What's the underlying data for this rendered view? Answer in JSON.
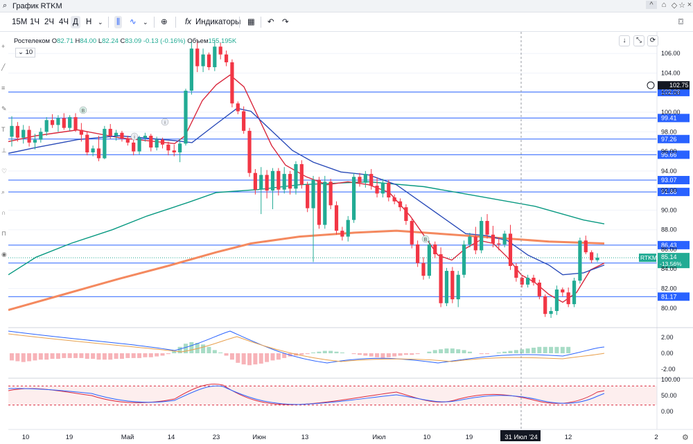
{
  "window": {
    "title": "График RTKM",
    "controls": [
      "^",
      "⌂",
      "◇",
      "☆",
      "×"
    ]
  },
  "toolbar": {
    "timeframes": [
      "15M",
      "1Ч",
      "2Ч",
      "4Ч",
      "Д",
      "Н"
    ],
    "active_timeframe": "Д",
    "indicators_label": "Индикаторы"
  },
  "legend": {
    "name": "Ростелеком",
    "o_label": "О",
    "o": "82.71",
    "h_label": "H",
    "h": "84.00",
    "l_label": "L",
    "l": "82.24",
    "c_label": "C",
    "c": "83.09",
    "change": "-0.13 (-0.16%)",
    "vol_label": "Объем",
    "volume": "155.195K",
    "indicator_value": "10"
  },
  "colors": {
    "up": "#22ab94",
    "down": "#f23645",
    "level": "#2962ff",
    "ma_green": "#089981",
    "ma_orange": "#f4895f",
    "ma_red": "#d9283d",
    "ma_blue": "#2a4bb8",
    "text": "#131722",
    "grid": "#f0f3fa"
  },
  "chart_data": {
    "type": "candlestick",
    "price_axis": {
      "ticks": [
        "106.00",
        "104.00",
        "102.00",
        "100.00",
        "98.00",
        "96.00",
        "94.00",
        "92.00",
        "90.00",
        "88.00",
        "86.00",
        "84.00",
        "82.00",
        "80.00"
      ],
      "ylim": [
        78.5,
        107.5
      ]
    },
    "time_axis": {
      "ticks": [
        "10",
        "19",
        "Май",
        "14",
        "23",
        "Июн",
        "13",
        "Июл",
        "10",
        "19",
        "31 Июл '24",
        "12",
        "2"
      ]
    },
    "crosshair_label": "31 Июл '24",
    "price_marker": "102.75",
    "last_price": {
      "symbol": "RTKM",
      "value": "85.14",
      "change": "-13.56%"
    },
    "levels": [
      {
        "value": 102.06,
        "label": "102.06"
      },
      {
        "value": 99.41,
        "label": "99.41"
      },
      {
        "value": 97.26,
        "label": "97.26"
      },
      {
        "value": 95.66,
        "label": "95.66"
      },
      {
        "value": 93.07,
        "label": "93.07"
      },
      {
        "value": 91.86,
        "label": "91.86"
      },
      {
        "value": 86.43,
        "label": "86.43"
      },
      {
        "value": 84.6,
        "label": "84.60"
      },
      {
        "value": 81.17,
        "label": "81.17"
      }
    ],
    "candles": [
      {
        "o": 97.5,
        "h": 99.6,
        "l": 96.5,
        "c": 98.6
      },
      {
        "o": 98.6,
        "h": 99.0,
        "l": 97.0,
        "c": 97.4
      },
      {
        "o": 97.4,
        "h": 98.7,
        "l": 96.8,
        "c": 98.2
      },
      {
        "o": 98.2,
        "h": 98.6,
        "l": 96.5,
        "c": 96.9
      },
      {
        "o": 96.9,
        "h": 97.8,
        "l": 96.2,
        "c": 97.2
      },
      {
        "o": 97.2,
        "h": 98.4,
        "l": 96.9,
        "c": 98.0
      },
      {
        "o": 98.0,
        "h": 99.5,
        "l": 97.6,
        "c": 99.2
      },
      {
        "o": 99.2,
        "h": 99.8,
        "l": 98.4,
        "c": 98.7
      },
      {
        "o": 98.7,
        "h": 99.7,
        "l": 98.0,
        "c": 99.4
      },
      {
        "o": 99.4,
        "h": 99.9,
        "l": 98.2,
        "c": 98.4
      },
      {
        "o": 98.4,
        "h": 99.7,
        "l": 98.1,
        "c": 99.5
      },
      {
        "o": 99.5,
        "h": 99.9,
        "l": 98.0,
        "c": 98.2
      },
      {
        "o": 98.2,
        "h": 98.9,
        "l": 97.0,
        "c": 97.7
      },
      {
        "o": 97.7,
        "h": 98.0,
        "l": 95.6,
        "c": 95.9
      },
      {
        "o": 95.9,
        "h": 96.6,
        "l": 95.5,
        "c": 96.3
      },
      {
        "o": 96.3,
        "h": 97.6,
        "l": 95.0,
        "c": 95.3
      },
      {
        "o": 95.3,
        "h": 98.6,
        "l": 95.2,
        "c": 98.3
      },
      {
        "o": 98.3,
        "h": 98.8,
        "l": 97.3,
        "c": 97.6
      },
      {
        "o": 97.6,
        "h": 98.2,
        "l": 97.1,
        "c": 97.9
      },
      {
        "o": 97.9,
        "h": 98.1,
        "l": 97.0,
        "c": 97.3
      },
      {
        "o": 97.3,
        "h": 97.6,
        "l": 96.6,
        "c": 96.9
      },
      {
        "o": 96.9,
        "h": 97.6,
        "l": 95.6,
        "c": 96.0
      },
      {
        "o": 96.0,
        "h": 97.6,
        "l": 95.7,
        "c": 97.4
      },
      {
        "o": 97.4,
        "h": 97.9,
        "l": 97.0,
        "c": 97.6
      },
      {
        "o": 97.6,
        "h": 97.8,
        "l": 96.0,
        "c": 96.4
      },
      {
        "o": 96.4,
        "h": 97.5,
        "l": 96.1,
        "c": 97.2
      },
      {
        "o": 97.2,
        "h": 97.4,
        "l": 96.3,
        "c": 96.7
      },
      {
        "o": 96.7,
        "h": 97.0,
        "l": 95.6,
        "c": 96.1
      },
      {
        "o": 96.1,
        "h": 96.7,
        "l": 95.5,
        "c": 95.9
      },
      {
        "o": 95.9,
        "h": 97.3,
        "l": 94.9,
        "c": 96.8
      },
      {
        "o": 96.8,
        "h": 102.4,
        "l": 96.6,
        "c": 102.2
      },
      {
        "o": 102.2,
        "h": 107.2,
        "l": 101.8,
        "c": 106.5
      },
      {
        "o": 106.5,
        "h": 107.3,
        "l": 104.1,
        "c": 104.7
      },
      {
        "o": 104.7,
        "h": 106.5,
        "l": 104.1,
        "c": 105.9
      },
      {
        "o": 105.9,
        "h": 106.1,
        "l": 104.3,
        "c": 104.6
      },
      {
        "o": 104.6,
        "h": 107.4,
        "l": 104.2,
        "c": 106.7
      },
      {
        "o": 106.7,
        "h": 107.1,
        "l": 105.4,
        "c": 105.9
      },
      {
        "o": 105.9,
        "h": 106.3,
        "l": 104.7,
        "c": 105.1
      },
      {
        "o": 105.1,
        "h": 105.4,
        "l": 100.5,
        "c": 100.9
      },
      {
        "o": 100.9,
        "h": 101.1,
        "l": 99.8,
        "c": 100.1
      },
      {
        "o": 100.1,
        "h": 100.6,
        "l": 97.8,
        "c": 98.1
      },
      {
        "o": 98.1,
        "h": 98.4,
        "l": 93.4,
        "c": 93.8
      },
      {
        "o": 93.8,
        "h": 94.2,
        "l": 91.6,
        "c": 92.1
      },
      {
        "o": 92.1,
        "h": 94.4,
        "l": 89.6,
        "c": 93.6
      },
      {
        "o": 93.6,
        "h": 94.1,
        "l": 91.2,
        "c": 92.0
      },
      {
        "o": 92.0,
        "h": 94.3,
        "l": 90.1,
        "c": 94.0
      },
      {
        "o": 94.0,
        "h": 94.3,
        "l": 91.5,
        "c": 92.1
      },
      {
        "o": 92.1,
        "h": 94.4,
        "l": 91.7,
        "c": 93.7
      },
      {
        "o": 93.7,
        "h": 94.0,
        "l": 91.6,
        "c": 92.2
      },
      {
        "o": 92.2,
        "h": 95.0,
        "l": 91.6,
        "c": 94.7
      },
      {
        "o": 94.7,
        "h": 95.1,
        "l": 92.2,
        "c": 92.6
      },
      {
        "o": 92.6,
        "h": 92.9,
        "l": 89.8,
        "c": 90.2
      },
      {
        "o": 90.2,
        "h": 93.5,
        "l": 84.7,
        "c": 93.1
      },
      {
        "o": 93.1,
        "h": 93.4,
        "l": 88.1,
        "c": 88.5
      },
      {
        "o": 88.5,
        "h": 93.5,
        "l": 88.1,
        "c": 92.9
      },
      {
        "o": 92.9,
        "h": 93.2,
        "l": 90.1,
        "c": 90.5
      },
      {
        "o": 90.5,
        "h": 90.9,
        "l": 87.5,
        "c": 87.9
      },
      {
        "o": 87.9,
        "h": 88.3,
        "l": 86.9,
        "c": 87.3
      },
      {
        "o": 87.3,
        "h": 89.4,
        "l": 86.8,
        "c": 89.0
      },
      {
        "o": 89.0,
        "h": 93.8,
        "l": 88.7,
        "c": 93.4
      },
      {
        "o": 93.4,
        "h": 93.8,
        "l": 92.4,
        "c": 92.8
      },
      {
        "o": 92.8,
        "h": 94.0,
        "l": 92.3,
        "c": 93.7
      },
      {
        "o": 93.7,
        "h": 94.2,
        "l": 92.1,
        "c": 92.5
      },
      {
        "o": 92.5,
        "h": 93.3,
        "l": 91.3,
        "c": 91.7
      },
      {
        "o": 91.7,
        "h": 93.2,
        "l": 91.3,
        "c": 92.8
      },
      {
        "o": 92.8,
        "h": 93.1,
        "l": 90.9,
        "c": 91.3
      },
      {
        "o": 91.3,
        "h": 91.6,
        "l": 90.6,
        "c": 90.9
      },
      {
        "o": 90.9,
        "h": 91.2,
        "l": 89.9,
        "c": 90.3
      },
      {
        "o": 90.3,
        "h": 90.6,
        "l": 88.5,
        "c": 88.9
      },
      {
        "o": 88.9,
        "h": 89.2,
        "l": 86.1,
        "c": 86.5
      },
      {
        "o": 86.5,
        "h": 86.9,
        "l": 84.2,
        "c": 84.6
      },
      {
        "o": 84.6,
        "h": 85.2,
        "l": 82.9,
        "c": 83.3
      },
      {
        "o": 83.3,
        "h": 86.9,
        "l": 83.0,
        "c": 86.5
      },
      {
        "o": 86.5,
        "h": 86.8,
        "l": 85.1,
        "c": 85.5
      },
      {
        "o": 85.5,
        "h": 86.2,
        "l": 80.1,
        "c": 80.5
      },
      {
        "o": 80.5,
        "h": 84.1,
        "l": 80.2,
        "c": 83.8
      },
      {
        "o": 83.8,
        "h": 84.2,
        "l": 80.5,
        "c": 80.9
      },
      {
        "o": 80.9,
        "h": 83.8,
        "l": 80.1,
        "c": 83.4
      },
      {
        "o": 83.4,
        "h": 86.9,
        "l": 83.1,
        "c": 86.5
      },
      {
        "o": 86.5,
        "h": 87.7,
        "l": 86.2,
        "c": 87.3
      },
      {
        "o": 87.3,
        "h": 88.3,
        "l": 85.5,
        "c": 85.9
      },
      {
        "o": 85.9,
        "h": 89.3,
        "l": 85.6,
        "c": 88.9
      },
      {
        "o": 88.9,
        "h": 89.6,
        "l": 87.1,
        "c": 87.5
      },
      {
        "o": 87.5,
        "h": 88.4,
        "l": 86.2,
        "c": 86.6
      },
      {
        "o": 86.6,
        "h": 87.2,
        "l": 85.9,
        "c": 86.5
      },
      {
        "o": 86.5,
        "h": 87.9,
        "l": 86.2,
        "c": 87.6
      },
      {
        "o": 87.6,
        "h": 88.5,
        "l": 83.9,
        "c": 84.3
      },
      {
        "o": 84.3,
        "h": 84.6,
        "l": 82.7,
        "c": 83.1
      },
      {
        "o": 83.1,
        "h": 83.4,
        "l": 82.1,
        "c": 82.4
      },
      {
        "o": 82.4,
        "h": 83.4,
        "l": 82.1,
        "c": 83.1
      },
      {
        "o": 83.1,
        "h": 83.4,
        "l": 82.3,
        "c": 82.6
      },
      {
        "o": 82.6,
        "h": 82.9,
        "l": 80.9,
        "c": 81.2
      },
      {
        "o": 81.2,
        "h": 81.4,
        "l": 79.1,
        "c": 79.4
      },
      {
        "o": 79.4,
        "h": 80.1,
        "l": 79.0,
        "c": 79.7
      },
      {
        "o": 79.7,
        "h": 82.3,
        "l": 79.3,
        "c": 81.9
      },
      {
        "o": 81.9,
        "h": 82.1,
        "l": 81.2,
        "c": 81.6
      },
      {
        "o": 81.6,
        "h": 82.1,
        "l": 80.1,
        "c": 80.4
      },
      {
        "o": 80.4,
        "h": 83.1,
        "l": 80.1,
        "c": 82.8
      },
      {
        "o": 82.8,
        "h": 87.2,
        "l": 82.5,
        "c": 86.9
      },
      {
        "o": 86.9,
        "h": 87.4,
        "l": 85.5,
        "c": 85.7
      },
      {
        "o": 85.7,
        "h": 85.9,
        "l": 84.6,
        "c": 84.9
      },
      {
        "o": 84.9,
        "h": 85.6,
        "l": 84.7,
        "c": 85.14
      }
    ],
    "ma_series": [
      {
        "color": "#089981",
        "values": [
          [
            0,
            83.4
          ],
          [
            40,
            85.2
          ],
          [
            90,
            86.6
          ],
          [
            150,
            88.0
          ],
          [
            200,
            89.4
          ],
          [
            260,
            90.8
          ],
          [
            300,
            91.8
          ],
          [
            360,
            92.1
          ],
          [
            420,
            92.6
          ],
          [
            520,
            92.9
          ],
          [
            600,
            92.4
          ],
          [
            680,
            91.4
          ],
          [
            760,
            90.4
          ],
          [
            830,
            89.0
          ],
          [
            860,
            88.6
          ]
        ]
      },
      {
        "color": "#f4895f",
        "values": [
          [
            0,
            79.8
          ],
          [
            80,
            81.4
          ],
          [
            160,
            83.0
          ],
          [
            230,
            84.3
          ],
          [
            300,
            85.7
          ],
          [
            350,
            86.6
          ],
          [
            420,
            87.3
          ],
          [
            500,
            87.7
          ],
          [
            560,
            87.9
          ],
          [
            620,
            87.6
          ],
          [
            700,
            87.2
          ],
          [
            780,
            86.8
          ],
          [
            860,
            86.6
          ]
        ]
      },
      {
        "color": "#d9283d",
        "values": [
          [
            0,
            97.0
          ],
          [
            40,
            97.6
          ],
          [
            100,
            98.2
          ],
          [
            160,
            97.4
          ],
          [
            240,
            96.8
          ],
          [
            255,
            97.6
          ],
          [
            280,
            101.2
          ],
          [
            300,
            102.8
          ],
          [
            320,
            103.8
          ],
          [
            340,
            102.6
          ],
          [
            360,
            99.6
          ],
          [
            380,
            96.6
          ],
          [
            400,
            94.6
          ],
          [
            430,
            93.4
          ],
          [
            460,
            92.6
          ],
          [
            490,
            92.9
          ],
          [
            520,
            92.6
          ],
          [
            550,
            91.8
          ],
          [
            580,
            89.4
          ],
          [
            600,
            87.4
          ],
          [
            620,
            85.4
          ],
          [
            640,
            84.9
          ],
          [
            660,
            86.1
          ],
          [
            680,
            86.9
          ],
          [
            700,
            86.6
          ],
          [
            720,
            85.2
          ],
          [
            740,
            83.4
          ],
          [
            760,
            82.6
          ],
          [
            780,
            81.4
          ],
          [
            800,
            80.6
          ],
          [
            820,
            81.6
          ],
          [
            840,
            83.9
          ],
          [
            860,
            84.6
          ]
        ]
      },
      {
        "color": "#2a4bb8",
        "values": [
          [
            0,
            95.8
          ],
          [
            40,
            96.4
          ],
          [
            100,
            97.2
          ],
          [
            160,
            97.6
          ],
          [
            240,
            97.1
          ],
          [
            265,
            96.9
          ],
          [
            300,
            98.8
          ],
          [
            330,
            100.4
          ],
          [
            350,
            100.1
          ],
          [
            380,
            98.1
          ],
          [
            410,
            96.1
          ],
          [
            440,
            94.9
          ],
          [
            480,
            93.9
          ],
          [
            520,
            93.6
          ],
          [
            560,
            92.6
          ],
          [
            600,
            90.6
          ],
          [
            640,
            88.6
          ],
          [
            660,
            87.6
          ],
          [
            690,
            87.4
          ],
          [
            720,
            86.9
          ],
          [
            750,
            85.4
          ],
          [
            780,
            84.4
          ],
          [
            800,
            83.4
          ],
          [
            830,
            83.6
          ],
          [
            860,
            84.4
          ]
        ]
      }
    ],
    "macd": {
      "axis_ticks": [
        "2.00",
        "0.00",
        "-2.00"
      ],
      "ylim": [
        -3,
        3
      ]
    },
    "stochastic": {
      "axis_ticks": [
        "100.00",
        "50.00",
        "0.00"
      ],
      "ylim": [
        0,
        100
      ],
      "upper": 80,
      "lower": 20
    }
  }
}
